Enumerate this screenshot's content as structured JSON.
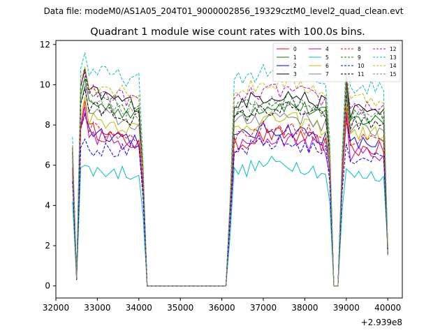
{
  "figure": {
    "suptitle": "Data file: modeM0/AS1A05_204T01_9000002856_19329cztM0_level2_quad_clean.evt",
    "title": "Quadrant 1 module wise count rates with 100.0s bins.",
    "offset_label": "+2.939e8"
  },
  "chart_data": {
    "type": "line",
    "title": "Quadrant 1 module wise count rates with 100.0s bins.",
    "xlabel": "",
    "ylabel": "",
    "x_offset": 293900000,
    "xlim": [
      32000,
      40350
    ],
    "ylim": [
      -0.6,
      12.2
    ],
    "xticks": [
      32000,
      33000,
      34000,
      35000,
      36000,
      37000,
      38000,
      39000,
      40000
    ],
    "xtick_labels": [
      "32000",
      "33000",
      "34000",
      "35000",
      "36000",
      "37000",
      "38000",
      "39000",
      "40000"
    ],
    "yticks": [
      0,
      2,
      4,
      6,
      8,
      10,
      12
    ],
    "ytick_labels": [
      "0",
      "2",
      "4",
      "6",
      "8",
      "10",
      "12"
    ],
    "legend_position": "top-right",
    "series": [
      {
        "name": "0",
        "color": "#ff0000",
        "dash": "solid",
        "level": 7.0,
        "peak": 9.2,
        "low": 0.35,
        "edge": 6.6
      },
      {
        "name": "1",
        "color": "#008000",
        "dash": "solid",
        "level": 8.5,
        "peak": 10.3,
        "low": 0.4,
        "edge": 6.9
      },
      {
        "name": "2",
        "color": "#0000ff",
        "dash": "solid",
        "level": 7.3,
        "peak": 8.6,
        "low": 0.3,
        "edge": 5.8
      },
      {
        "name": "3",
        "color": "#000000",
        "dash": "solid",
        "level": 9.0,
        "peak": 10.8,
        "low": 0.4,
        "edge": 6.8
      },
      {
        "name": "4",
        "color": "#c000c0",
        "dash": "solid",
        "level": 6.8,
        "peak": 8.9,
        "low": 0.35,
        "edge": 5.6
      },
      {
        "name": "5",
        "color": "#00bfbf",
        "dash": "solid",
        "level": 5.6,
        "peak": 6.0,
        "low": 0.3,
        "edge": 4.2
      },
      {
        "name": "6",
        "color": "#bfbf00",
        "dash": "solid",
        "level": 7.8,
        "peak": 9.4,
        "low": 0.35,
        "edge": 6.2
      },
      {
        "name": "7",
        "color": "#808080",
        "dash": "solid",
        "level": 8.0,
        "peak": 9.9,
        "low": 0.35,
        "edge": 6.4
      },
      {
        "name": "8",
        "color": "#ff0000",
        "dash": "dashed",
        "level": 7.4,
        "peak": 8.5,
        "low": 0.3,
        "edge": 5.9
      },
      {
        "name": "9",
        "color": "#008000",
        "dash": "dashed",
        "level": 8.8,
        "peak": 10.4,
        "low": 0.4,
        "edge": 6.7
      },
      {
        "name": "10",
        "color": "#0000ff",
        "dash": "dashed",
        "level": 6.6,
        "peak": 7.3,
        "low": 0.3,
        "edge": 5.2
      },
      {
        "name": "11",
        "color": "#000000",
        "dash": "dashed",
        "level": 8.3,
        "peak": 9.8,
        "low": 0.35,
        "edge": 6.6
      },
      {
        "name": "12",
        "color": "#c000c0",
        "dash": "dashed",
        "level": 9.2,
        "peak": 10.6,
        "low": 0.4,
        "edge": 6.9
      },
      {
        "name": "13",
        "color": "#00bfbf",
        "dash": "dashed",
        "level": 10.2,
        "peak": 11.6,
        "low": 0.45,
        "edge": 7.4
      },
      {
        "name": "14",
        "color": "#bfbf00",
        "dash": "dashed",
        "level": 9.6,
        "peak": 10.9,
        "low": 0.4,
        "edge": 7.0
      },
      {
        "name": "15",
        "color": "#808080",
        "dash": "dashed",
        "level": 8.6,
        "peak": 10.0,
        "low": 0.35,
        "edge": 6.5
      }
    ],
    "time_segments": [
      {
        "type": "active",
        "start": 32400,
        "end": 32400,
        "value": "edge"
      },
      {
        "type": "dip",
        "at": 32500
      },
      {
        "type": "active",
        "start": 32600,
        "end": 34100
      },
      {
        "type": "zero",
        "start": 34200,
        "end": 36100
      },
      {
        "type": "active",
        "start": 36200,
        "end": 38600
      },
      {
        "type": "zero",
        "start": 38700,
        "end": 38800
      },
      {
        "type": "active",
        "start": 38900,
        "end": 39900
      },
      {
        "type": "end",
        "at": 40000
      }
    ]
  }
}
